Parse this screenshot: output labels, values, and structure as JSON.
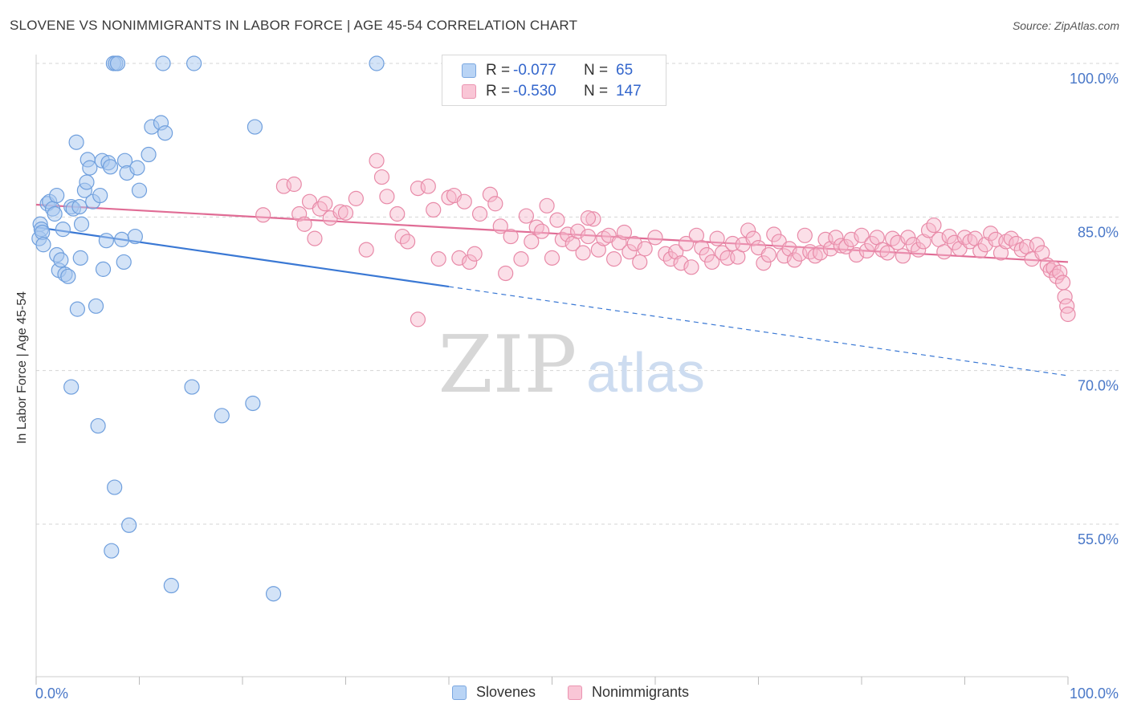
{
  "title": "SLOVENE VS NONIMMIGRANTS IN LABOR FORCE | AGE 45-54 CORRELATION CHART",
  "source": "Source: ZipAtlas.com",
  "watermark": {
    "zip": "ZIP",
    "atlas": "atlas"
  },
  "legend_top": [
    {
      "r_label": "R =",
      "r_value": "-0.077",
      "n_label": "N =",
      "n_value": "65"
    },
    {
      "r_label": "R =",
      "r_value": "-0.530",
      "n_label": "N =",
      "n_value": "147"
    }
  ],
  "colors": {
    "slovene_fill": "#a8c8f0",
    "slovene_stroke": "#6f9fdd",
    "slovene_line": "#3a78d4",
    "nonimm_fill": "#f7b8cc",
    "nonimm_stroke": "#e88aa8",
    "nonimm_line": "#e06c95",
    "tick_text": "#4a78c8",
    "grid": "#d5d5d5"
  },
  "chart_data": {
    "type": "scatter",
    "title": "SLOVENE VS NONIMMIGRANTS IN LABOR FORCE | AGE 45-54 CORRELATION CHART",
    "xlabel": "",
    "ylabel": "In Labor Force | Age 45-54",
    "xlim": [
      0,
      100
    ],
    "ylim": [
      40.5,
      101.5
    ],
    "x_tick_labels": [
      "0.0%",
      "100.0%"
    ],
    "y_ticks": [
      {
        "value": 100,
        "label": "100.0%"
      },
      {
        "value": 85,
        "label": "85.0%"
      },
      {
        "value": 70,
        "label": "70.0%"
      },
      {
        "value": 55,
        "label": "55.0%"
      }
    ],
    "grid": true,
    "legend_position": "bottom",
    "series": [
      {
        "name": "Slovenes",
        "trend": {
          "x_start": 0,
          "y_start": 84.0,
          "x_solid_end": 40,
          "x_end": 100,
          "y_end": 69.5
        },
        "points": [
          [
            0.3,
            82.9
          ],
          [
            0.4,
            84.3
          ],
          [
            0.5,
            83.8
          ],
          [
            0.6,
            83.5
          ],
          [
            0.7,
            82.3
          ],
          [
            1.1,
            86.3
          ],
          [
            1.3,
            86.5
          ],
          [
            1.6,
            85.8
          ],
          [
            1.8,
            85.3
          ],
          [
            2.0,
            87.1
          ],
          [
            2.0,
            81.3
          ],
          [
            2.2,
            79.8
          ],
          [
            2.4,
            80.8
          ],
          [
            2.6,
            83.8
          ],
          [
            2.8,
            79.4
          ],
          [
            3.1,
            79.2
          ],
          [
            3.4,
            86.0
          ],
          [
            3.6,
            85.8
          ],
          [
            3.9,
            92.3
          ],
          [
            4.0,
            76.0
          ],
          [
            4.2,
            86.0
          ],
          [
            4.3,
            81.0
          ],
          [
            4.4,
            84.3
          ],
          [
            4.7,
            87.6
          ],
          [
            4.9,
            88.4
          ],
          [
            5.0,
            90.6
          ],
          [
            5.2,
            89.8
          ],
          [
            5.5,
            86.5
          ],
          [
            5.8,
            76.3
          ],
          [
            6.2,
            87.1
          ],
          [
            6.4,
            90.5
          ],
          [
            6.5,
            79.9
          ],
          [
            6.8,
            82.7
          ],
          [
            7.0,
            90.3
          ],
          [
            7.2,
            89.9
          ],
          [
            7.5,
            100.0
          ],
          [
            7.7,
            100.0
          ],
          [
            7.9,
            100.0
          ],
          [
            8.3,
            82.8
          ],
          [
            8.5,
            80.6
          ],
          [
            8.6,
            90.5
          ],
          [
            8.8,
            89.3
          ],
          [
            9.6,
            83.1
          ],
          [
            9.8,
            89.8
          ],
          [
            10.0,
            87.6
          ],
          [
            10.9,
            91.1
          ],
          [
            11.2,
            93.8
          ],
          [
            12.1,
            94.2
          ],
          [
            12.3,
            100.0
          ],
          [
            12.5,
            93.2
          ],
          [
            15.3,
            100.0
          ],
          [
            21.2,
            93.8
          ],
          [
            33.0,
            100.0
          ],
          [
            3.4,
            68.4
          ],
          [
            6.0,
            64.6
          ],
          [
            7.6,
            58.6
          ],
          [
            9.0,
            54.9
          ],
          [
            7.3,
            52.4
          ],
          [
            13.1,
            49.0
          ],
          [
            15.1,
            68.4
          ],
          [
            18.0,
            65.6
          ],
          [
            21.0,
            66.8
          ],
          [
            23.0,
            48.2
          ]
        ]
      },
      {
        "name": "Nonimmigrants",
        "trend": {
          "x_start": 0,
          "y_start": 86.2,
          "x_end": 100,
          "y_end": 80.6
        },
        "points": [
          [
            22.0,
            85.2
          ],
          [
            24.0,
            88.0
          ],
          [
            25.0,
            88.2
          ],
          [
            25.5,
            85.3
          ],
          [
            26.0,
            84.3
          ],
          [
            26.5,
            86.5
          ],
          [
            27.0,
            82.9
          ],
          [
            27.5,
            85.8
          ],
          [
            28.5,
            84.9
          ],
          [
            29.5,
            85.5
          ],
          [
            30.0,
            85.4
          ],
          [
            31.0,
            86.8
          ],
          [
            32.0,
            81.8
          ],
          [
            33.0,
            90.5
          ],
          [
            33.5,
            88.9
          ],
          [
            35.0,
            85.3
          ],
          [
            35.5,
            83.1
          ],
          [
            36.0,
            82.6
          ],
          [
            37.0,
            87.8
          ],
          [
            38.0,
            88.0
          ],
          [
            38.5,
            85.7
          ],
          [
            39.0,
            80.9
          ],
          [
            40.0,
            86.9
          ],
          [
            40.5,
            87.1
          ],
          [
            41.0,
            81.0
          ],
          [
            42.0,
            80.6
          ],
          [
            42.5,
            81.4
          ],
          [
            43.0,
            85.3
          ],
          [
            44.0,
            87.2
          ],
          [
            44.5,
            86.3
          ],
          [
            45.0,
            84.1
          ],
          [
            45.5,
            79.5
          ],
          [
            46.0,
            83.1
          ],
          [
            47.0,
            80.9
          ],
          [
            47.5,
            85.1
          ],
          [
            48.0,
            82.6
          ],
          [
            48.5,
            84.0
          ],
          [
            49.0,
            83.6
          ],
          [
            49.5,
            86.1
          ],
          [
            50.0,
            81.0
          ],
          [
            50.5,
            84.7
          ],
          [
            51.0,
            82.8
          ],
          [
            51.5,
            83.3
          ],
          [
            52.0,
            82.4
          ],
          [
            52.5,
            83.6
          ],
          [
            53.0,
            81.5
          ],
          [
            53.5,
            83.1
          ],
          [
            54.0,
            84.8
          ],
          [
            54.5,
            81.8
          ],
          [
            55.0,
            82.9
          ],
          [
            55.5,
            83.2
          ],
          [
            56.0,
            80.9
          ],
          [
            56.5,
            82.5
          ],
          [
            57.0,
            83.5
          ],
          [
            57.5,
            81.6
          ],
          [
            58.0,
            82.4
          ],
          [
            58.5,
            80.6
          ],
          [
            59.0,
            81.9
          ],
          [
            60.0,
            83.0
          ],
          [
            61.0,
            81.4
          ],
          [
            61.5,
            80.9
          ],
          [
            62.0,
            81.6
          ],
          [
            62.5,
            80.5
          ],
          [
            63.0,
            82.4
          ],
          [
            63.5,
            80.1
          ],
          [
            64.0,
            83.2
          ],
          [
            64.5,
            82.0
          ],
          [
            65.0,
            81.3
          ],
          [
            65.5,
            80.6
          ],
          [
            66.0,
            82.9
          ],
          [
            66.5,
            81.5
          ],
          [
            67.0,
            81.0
          ],
          [
            67.5,
            82.4
          ],
          [
            68.0,
            81.1
          ],
          [
            68.5,
            82.3
          ],
          [
            69.0,
            83.7
          ],
          [
            69.5,
            82.9
          ],
          [
            70.0,
            82.0
          ],
          [
            70.5,
            80.5
          ],
          [
            71.0,
            81.3
          ],
          [
            71.5,
            83.3
          ],
          [
            72.0,
            82.6
          ],
          [
            72.5,
            81.2
          ],
          [
            73.0,
            81.9
          ],
          [
            73.5,
            80.8
          ],
          [
            74.0,
            81.4
          ],
          [
            74.5,
            83.2
          ],
          [
            75.0,
            81.6
          ],
          [
            75.5,
            81.2
          ],
          [
            76.0,
            81.5
          ],
          [
            76.5,
            82.8
          ],
          [
            77.0,
            81.9
          ],
          [
            77.5,
            83.0
          ],
          [
            78.0,
            82.2
          ],
          [
            78.5,
            82.1
          ],
          [
            79.0,
            82.8
          ],
          [
            79.5,
            81.3
          ],
          [
            80.0,
            83.2
          ],
          [
            80.5,
            81.7
          ],
          [
            81.0,
            82.4
          ],
          [
            81.5,
            83.0
          ],
          [
            82.0,
            81.8
          ],
          [
            82.5,
            81.5
          ],
          [
            83.0,
            82.9
          ],
          [
            83.5,
            82.5
          ],
          [
            84.0,
            81.2
          ],
          [
            84.5,
            83.0
          ],
          [
            85.0,
            82.3
          ],
          [
            85.5,
            81.8
          ],
          [
            86.0,
            82.6
          ],
          [
            86.5,
            83.7
          ],
          [
            87.0,
            84.2
          ],
          [
            87.5,
            82.8
          ],
          [
            88.0,
            81.6
          ],
          [
            88.5,
            83.1
          ],
          [
            89.0,
            82.5
          ],
          [
            89.5,
            81.9
          ],
          [
            90.0,
            83.0
          ],
          [
            90.5,
            82.6
          ],
          [
            91.0,
            82.9
          ],
          [
            91.5,
            81.7
          ],
          [
            92.0,
            82.3
          ],
          [
            92.5,
            83.4
          ],
          [
            93.0,
            82.8
          ],
          [
            93.5,
            81.5
          ],
          [
            94.0,
            82.6
          ],
          [
            94.5,
            82.9
          ],
          [
            95.0,
            82.4
          ],
          [
            95.5,
            81.8
          ],
          [
            96.0,
            82.1
          ],
          [
            96.5,
            80.9
          ],
          [
            97.0,
            82.3
          ],
          [
            97.5,
            81.5
          ],
          [
            98.0,
            80.3
          ],
          [
            98.3,
            79.8
          ],
          [
            98.6,
            80.0
          ],
          [
            98.9,
            79.2
          ],
          [
            99.2,
            79.6
          ],
          [
            99.5,
            78.6
          ],
          [
            99.7,
            77.2
          ],
          [
            99.9,
            76.3
          ],
          [
            100.0,
            75.5
          ],
          [
            37.0,
            75.0
          ],
          [
            28.0,
            86.3
          ],
          [
            34.0,
            87.0
          ],
          [
            41.5,
            86.5
          ],
          [
            53.5,
            84.9
          ]
        ]
      }
    ]
  },
  "legend_bottom": [
    {
      "name": "Slovenes"
    },
    {
      "name": "Nonimmigrants"
    }
  ]
}
